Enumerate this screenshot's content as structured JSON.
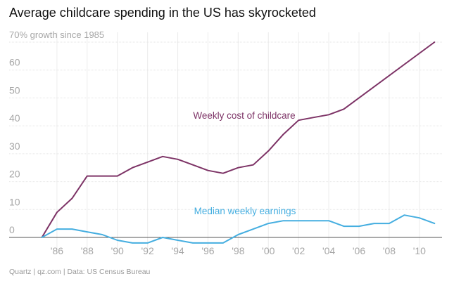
{
  "header": {
    "title": "Average childcare spending in the US has skyrocketed"
  },
  "footer": {
    "credit": "Quartz | qz.com | Data: US Census Bureau"
  },
  "chart_data": {
    "type": "line",
    "title": "Average childcare spending in the US has skyrocketed",
    "ylabel": "70% growth since 1985",
    "xlabel": "",
    "xlim": [
      1984,
      2011.5
    ],
    "ylim": [
      0,
      70
    ],
    "y_ticks": [
      0,
      10,
      20,
      30,
      40,
      50,
      60,
      70
    ],
    "y_tick_labels": [
      "0",
      "10",
      "20",
      "30",
      "40",
      "50",
      "60",
      "70% growth since 1985"
    ],
    "x_ticks": [
      1986,
      1988,
      1990,
      1992,
      1994,
      1996,
      1998,
      2000,
      2002,
      2004,
      2006,
      2008,
      2010
    ],
    "x_tick_labels": [
      "'86",
      "'88",
      "'90",
      "'92",
      "'94",
      "'96",
      "'98",
      "'00",
      "'02",
      "'04",
      "'06",
      "'08",
      "'10"
    ],
    "grid": true,
    "series": [
      {
        "name": "Weekly cost of childcare",
        "color": "#7d3366",
        "x": [
          1985,
          1986,
          1987,
          1988,
          1989,
          1990,
          1991,
          1992,
          1993,
          1994,
          1995,
          1996,
          1997,
          1998,
          1999,
          2000,
          2001,
          2002,
          2003,
          2004,
          2005,
          2011
        ],
        "values": [
          0,
          9,
          14,
          22,
          22,
          22,
          25,
          27,
          29,
          28,
          26,
          24,
          23,
          25,
          26,
          31,
          37,
          42,
          43,
          44,
          46,
          70
        ]
      },
      {
        "name": "Median weekly earnings",
        "color": "#45aee0",
        "x": [
          1985,
          1986,
          1987,
          1988,
          1989,
          1990,
          1991,
          1992,
          1993,
          1994,
          1995,
          1996,
          1997,
          1998,
          1999,
          2000,
          2001,
          2002,
          2003,
          2004,
          2005,
          2006,
          2007,
          2008,
          2009,
          2010,
          2011
        ],
        "values": [
          0,
          3,
          3,
          2,
          1,
          -1,
          -2,
          -2,
          0,
          -1,
          -2,
          -2,
          -2,
          1,
          3,
          5,
          6,
          6,
          6,
          6,
          4,
          4,
          5,
          5,
          8,
          7,
          5
        ]
      }
    ],
    "annotations": [
      {
        "text": "Weekly cost of childcare",
        "series": 0
      },
      {
        "text": "Median weekly earnings",
        "series": 1
      }
    ]
  }
}
